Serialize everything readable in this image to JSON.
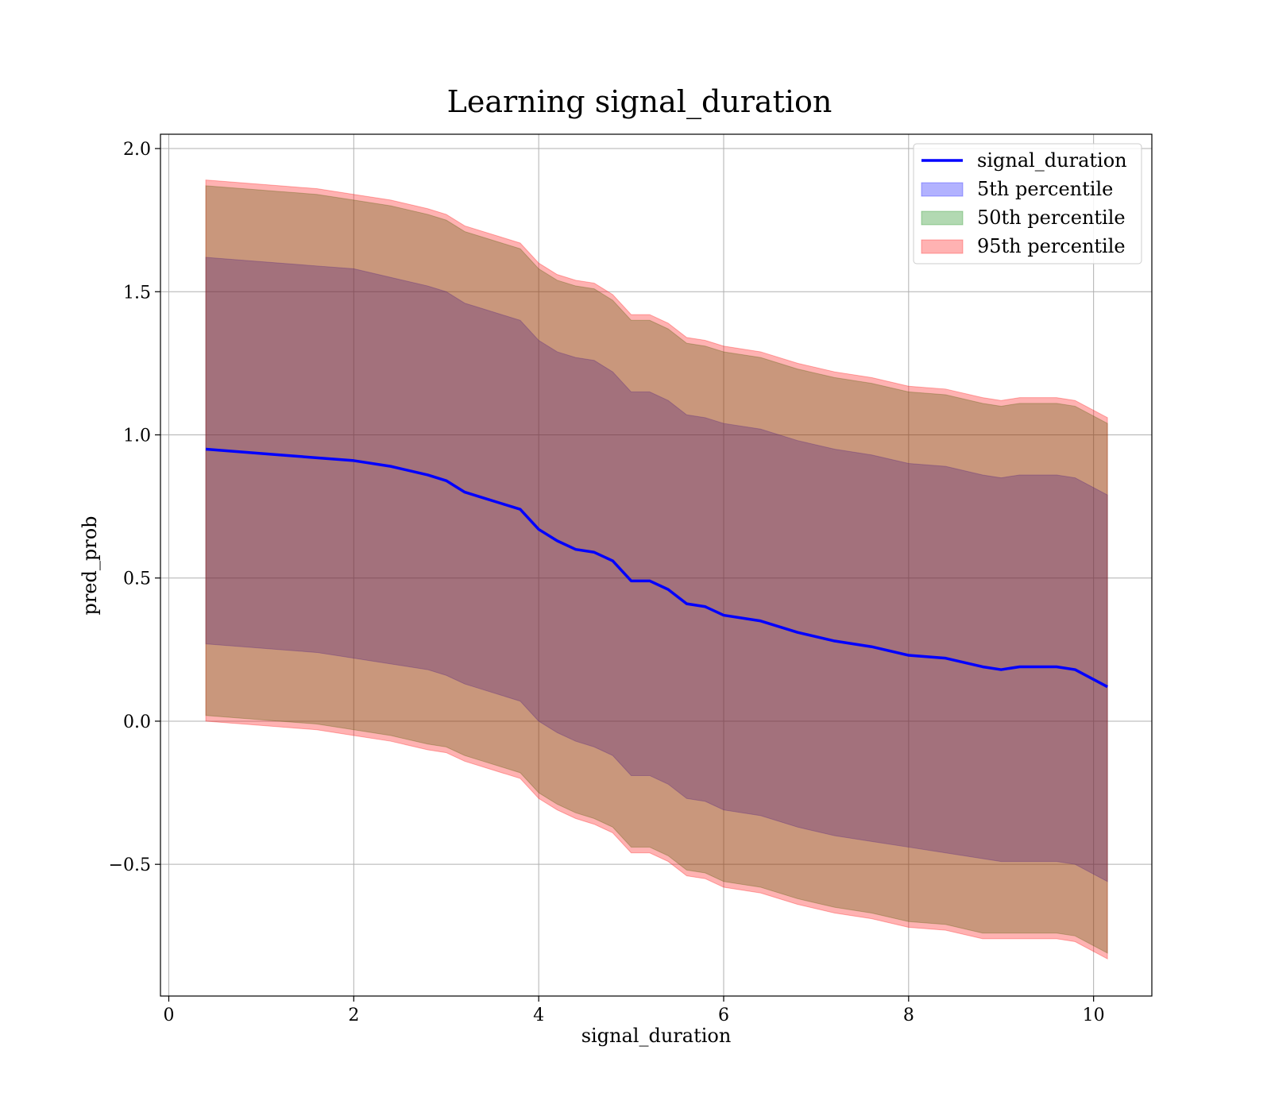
{
  "chart_data": {
    "type": "area",
    "title": "Learning signal_duration",
    "xlabel": "signal_duration",
    "ylabel": "pred_prob",
    "xlim": [
      -0.09,
      10.63
    ],
    "ylim": [
      -0.96,
      2.05
    ],
    "x_ticks": [
      0,
      2,
      4,
      6,
      8,
      10
    ],
    "x_tick_labels": [
      "0",
      "2",
      "4",
      "6",
      "8",
      "10"
    ],
    "y_ticks": [
      -0.5,
      0.0,
      0.5,
      1.0,
      1.5,
      2.0
    ],
    "y_tick_labels": [
      "−0.5",
      "0.0",
      "0.5",
      "1.0",
      "1.5",
      "2.0"
    ],
    "grid": true,
    "legend_position": "top-right",
    "x": [
      0.4,
      0.8,
      1.2,
      1.6,
      2.0,
      2.4,
      2.8,
      3.0,
      3.2,
      3.4,
      3.6,
      3.8,
      4.0,
      4.2,
      4.4,
      4.6,
      4.8,
      5.0,
      5.2,
      5.4,
      5.6,
      5.8,
      6.0,
      6.4,
      6.8,
      7.2,
      7.6,
      8.0,
      8.4,
      8.8,
      9.0,
      9.2,
      9.6,
      9.8,
      10.15
    ],
    "line": {
      "name": "signal_duration",
      "color": "#0000ff",
      "values": [
        0.95,
        0.94,
        0.93,
        0.92,
        0.91,
        0.89,
        0.86,
        0.84,
        0.8,
        0.78,
        0.76,
        0.74,
        0.67,
        0.63,
        0.6,
        0.59,
        0.56,
        0.49,
        0.49,
        0.46,
        0.41,
        0.4,
        0.37,
        0.35,
        0.31,
        0.28,
        0.26,
        0.23,
        0.22,
        0.19,
        0.18,
        0.19,
        0.19,
        0.18,
        0.12
      ]
    },
    "series": [
      {
        "name": "5th percentile",
        "color": "#0000ff",
        "upper": [
          1.62,
          1.61,
          1.6,
          1.59,
          1.58,
          1.55,
          1.52,
          1.5,
          1.46,
          1.44,
          1.42,
          1.4,
          1.33,
          1.29,
          1.27,
          1.26,
          1.22,
          1.15,
          1.15,
          1.12,
          1.07,
          1.06,
          1.04,
          1.02,
          0.98,
          0.95,
          0.93,
          0.9,
          0.89,
          0.86,
          0.85,
          0.86,
          0.86,
          0.85,
          0.79
        ],
        "lower": [
          0.27,
          0.26,
          0.25,
          0.24,
          0.22,
          0.2,
          0.18,
          0.16,
          0.13,
          0.11,
          0.09,
          0.07,
          0.0,
          -0.04,
          -0.07,
          -0.09,
          -0.12,
          -0.19,
          -0.19,
          -0.22,
          -0.27,
          -0.28,
          -0.31,
          -0.33,
          -0.37,
          -0.4,
          -0.42,
          -0.44,
          -0.46,
          -0.48,
          -0.49,
          -0.49,
          -0.49,
          -0.5,
          -0.56
        ]
      },
      {
        "name": "50th percentile",
        "color": "#008000",
        "upper": [
          1.87,
          1.86,
          1.85,
          1.84,
          1.82,
          1.8,
          1.77,
          1.75,
          1.71,
          1.69,
          1.67,
          1.65,
          1.58,
          1.54,
          1.52,
          1.51,
          1.47,
          1.4,
          1.4,
          1.37,
          1.32,
          1.31,
          1.29,
          1.27,
          1.23,
          1.2,
          1.18,
          1.15,
          1.14,
          1.11,
          1.1,
          1.11,
          1.11,
          1.1,
          1.04
        ],
        "lower": [
          0.02,
          0.01,
          0.0,
          -0.01,
          -0.03,
          -0.05,
          -0.08,
          -0.09,
          -0.12,
          -0.14,
          -0.16,
          -0.18,
          -0.25,
          -0.29,
          -0.32,
          -0.34,
          -0.37,
          -0.44,
          -0.44,
          -0.47,
          -0.52,
          -0.53,
          -0.56,
          -0.58,
          -0.62,
          -0.65,
          -0.67,
          -0.7,
          -0.71,
          -0.74,
          -0.74,
          -0.74,
          -0.74,
          -0.75,
          -0.81
        ]
      },
      {
        "name": "95th percentile",
        "color": "#ff0000",
        "upper": [
          1.89,
          1.88,
          1.87,
          1.86,
          1.84,
          1.82,
          1.79,
          1.77,
          1.73,
          1.71,
          1.69,
          1.67,
          1.6,
          1.56,
          1.54,
          1.53,
          1.49,
          1.42,
          1.42,
          1.39,
          1.34,
          1.33,
          1.31,
          1.29,
          1.25,
          1.22,
          1.2,
          1.17,
          1.16,
          1.13,
          1.12,
          1.13,
          1.13,
          1.12,
          1.06
        ],
        "lower": [
          0.0,
          -0.01,
          -0.02,
          -0.03,
          -0.05,
          -0.07,
          -0.1,
          -0.11,
          -0.14,
          -0.16,
          -0.18,
          -0.2,
          -0.27,
          -0.31,
          -0.34,
          -0.36,
          -0.39,
          -0.46,
          -0.46,
          -0.49,
          -0.54,
          -0.55,
          -0.58,
          -0.6,
          -0.64,
          -0.67,
          -0.69,
          -0.72,
          -0.73,
          -0.76,
          -0.76,
          -0.76,
          -0.76,
          -0.77,
          -0.83
        ]
      }
    ]
  }
}
